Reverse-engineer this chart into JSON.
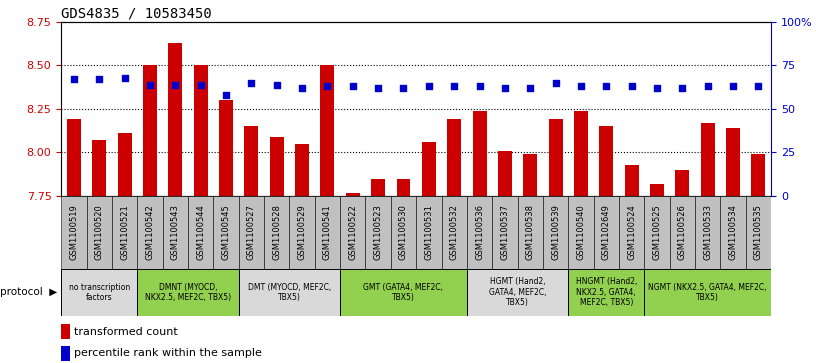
{
  "title": "GDS4835 / 10583450",
  "samples": [
    "GSM1100519",
    "GSM1100520",
    "GSM1100521",
    "GSM1100542",
    "GSM1100543",
    "GSM1100544",
    "GSM1100545",
    "GSM1100527",
    "GSM1100528",
    "GSM1100529",
    "GSM1100541",
    "GSM1100522",
    "GSM1100523",
    "GSM1100530",
    "GSM1100531",
    "GSM1100532",
    "GSM1100536",
    "GSM1100537",
    "GSM1100538",
    "GSM1100539",
    "GSM1100540",
    "GSM1102649",
    "GSM1100524",
    "GSM1100525",
    "GSM1100526",
    "GSM1100533",
    "GSM1100534",
    "GSM1100535"
  ],
  "red_values": [
    8.19,
    8.07,
    8.11,
    8.5,
    8.63,
    8.5,
    8.3,
    8.15,
    8.09,
    8.05,
    8.5,
    7.77,
    7.85,
    7.85,
    8.06,
    8.19,
    8.24,
    8.01,
    7.99,
    8.19,
    8.24,
    8.15,
    7.93,
    7.82,
    7.9,
    8.17,
    8.14,
    7.99
  ],
  "blue_values": [
    67,
    67,
    68,
    64,
    64,
    64,
    58,
    65,
    64,
    62,
    63,
    63,
    62,
    62,
    63,
    63,
    63,
    62,
    62,
    65,
    63,
    63,
    63,
    62,
    62,
    63,
    63,
    63
  ],
  "protocols": [
    {
      "label": "no transcription\nfactors",
      "start": 0,
      "end": 3,
      "color": "#d9d9d9"
    },
    {
      "label": "DMNT (MYOCD,\nNKX2.5, MEF2C, TBX5)",
      "start": 3,
      "end": 7,
      "color": "#92d050"
    },
    {
      "label": "DMT (MYOCD, MEF2C,\nTBX5)",
      "start": 7,
      "end": 11,
      "color": "#d9d9d9"
    },
    {
      "label": "GMT (GATA4, MEF2C,\nTBX5)",
      "start": 11,
      "end": 16,
      "color": "#92d050"
    },
    {
      "label": "HGMT (Hand2,\nGATA4, MEF2C,\nTBX5)",
      "start": 16,
      "end": 20,
      "color": "#d9d9d9"
    },
    {
      "label": "HNGMT (Hand2,\nNKX2.5, GATA4,\nMEF2C, TBX5)",
      "start": 20,
      "end": 23,
      "color": "#92d050"
    },
    {
      "label": "NGMT (NKX2.5, GATA4, MEF2C,\nTBX5)",
      "start": 23,
      "end": 28,
      "color": "#92d050"
    }
  ],
  "ylim_left": [
    7.75,
    8.75
  ],
  "ylim_right": [
    0,
    100
  ],
  "yticks_left": [
    7.75,
    8.0,
    8.25,
    8.5,
    8.75
  ],
  "yticks_right": [
    0,
    25,
    50,
    75,
    100
  ],
  "bar_color": "#cc0000",
  "dot_color": "#0000cc",
  "bg_color": "#ffffff",
  "plot_bg": "#ffffff",
  "grid_color": "#000000",
  "left_tick_color": "#cc0000",
  "right_tick_color": "#0000cc",
  "sample_box_color": "#c0c0c0"
}
